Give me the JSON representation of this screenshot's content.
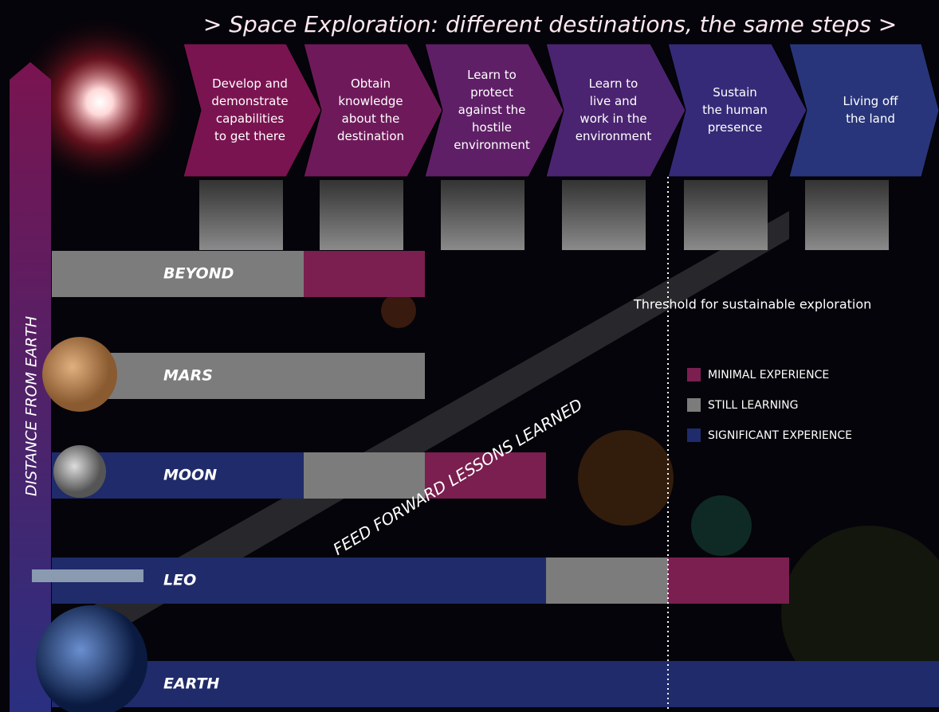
{
  "title": "> Space Exploration: different destinations, the same steps >",
  "axis_label": "DISTANCE  FROM  EARTH",
  "steps": [
    {
      "lines": [
        "Develop and",
        "demonstrate",
        "capabilities",
        "to get there"
      ]
    },
    {
      "lines": [
        "Obtain",
        "knowledge",
        "about the",
        "destination"
      ]
    },
    {
      "lines": [
        "Learn to",
        "protect",
        "against the",
        "hostile",
        "environment"
      ]
    },
    {
      "lines": [
        "Learn to",
        "live and",
        "work in the",
        "environment"
      ]
    },
    {
      "lines": [
        "Sustain",
        "the human",
        "presence"
      ]
    },
    {
      "lines": [
        "Living off",
        "the land"
      ]
    }
  ],
  "threshold_label": "Threshold for sustainable exploration",
  "feed_forward_label": "FEED FORWARD LESSONS LEARNED",
  "legend": [
    {
      "label": "MINIMAL EXPERIENCE",
      "color": "#7a1f4f"
    },
    {
      "label": "STILL LEARNING",
      "color": "#7c7c7c"
    },
    {
      "label": "SIGNIFICANT EXPERIENCE",
      "color": "#1f2b6a"
    }
  ],
  "rows": [
    {
      "label": "BEYOND",
      "segments": [
        1,
        0
      ]
    },
    {
      "label": "MARS",
      "segments": [
        1,
        1
      ]
    },
    {
      "label": "MOON",
      "segments": [
        2,
        1,
        0
      ]
    },
    {
      "label": "LEO",
      "segments": [
        2,
        2,
        2,
        1,
        0
      ]
    },
    {
      "label": "EARTH",
      "segments": [
        2,
        2,
        2,
        2,
        2,
        2
      ]
    }
  ]
}
